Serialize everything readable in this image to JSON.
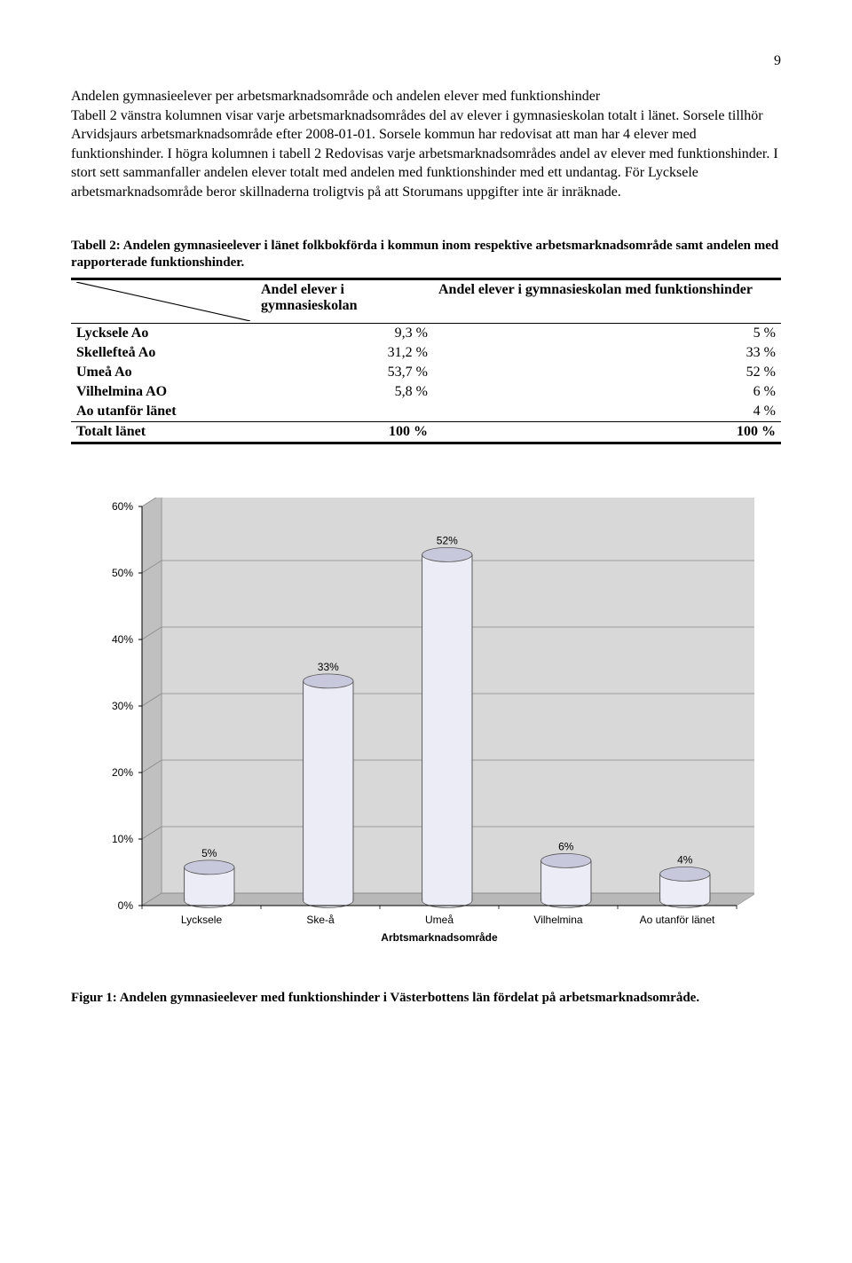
{
  "page_number": "9",
  "body_text": "Andelen gymnasieelever per arbetsmarknadsområde och andelen elever med funktionshinder\nTabell 2 vänstra kolumnen visar varje arbetsmarknadsområdes del av elever i gymnasieskolan totalt i länet. Sorsele tillhör Arvidsjaurs arbetsmarknadsområde efter 2008-01-01. Sorsele kommun har redovisat att man har 4 elever med funktionshinder. I högra kolumnen i tabell 2 Redovisas varje arbetsmarknadsområdes andel av elever med funktionshinder. I stort sett sammanfaller andelen elever totalt med andelen med funktionshinder med ett undantag. För Lycksele arbetsmarknadsområde beror skillnaderna troligtvis på att Storumans uppgifter inte är inräknade.",
  "table": {
    "caption": "Tabell 2: Andelen gymnasieelever i länet folkbokförda i kommun inom respektive arbetsmarknadsområde samt andelen med rapporterade funktionshinder.",
    "columns": [
      "",
      "Andel elever i gymnasieskolan",
      "Andel elever i gymnasieskolan med funktionshinder"
    ],
    "rows": [
      [
        "Lycksele Ao",
        "9,3 %",
        "5 %"
      ],
      [
        "Skellefteå Ao",
        "31,2 %",
        "33 %"
      ],
      [
        "Umeå Ao",
        "53,7 %",
        "52 %"
      ],
      [
        "Vilhelmina AO",
        "5,8 %",
        "6 %"
      ],
      [
        "Ao utanför länet",
        "",
        "4 %"
      ]
    ],
    "total_row": [
      "Totalt länet",
      "100 %",
      "100 %"
    ],
    "col_widths": [
      "26%",
      "25%",
      "49%"
    ]
  },
  "chart": {
    "type": "bar3d",
    "categories": [
      "Lycksele",
      "Ske-å",
      "Umeå",
      "Vilhelmina",
      "Ao utanför länet"
    ],
    "values": [
      5,
      33,
      52,
      6,
      4
    ],
    "bar_labels": [
      "5%",
      "33%",
      "52%",
      "6%",
      "4%"
    ],
    "x_title": "Arbtsmarknadsområde",
    "y_ticks": [
      0,
      10,
      20,
      30,
      40,
      50,
      60
    ],
    "y_tick_labels": [
      "0%",
      "10%",
      "20%",
      "30%",
      "40%",
      "50%",
      "60%"
    ],
    "ymax": 60,
    "bar_fill": "#ececf6",
    "bar_top": "#c8c8dc",
    "bar_side": "#b8b8cc",
    "bar_stroke": "#555",
    "back_wall": "#d8d8d8",
    "side_wall": "#c0c0c0",
    "floor": "#b8b8b8",
    "grid_color": "#8a8a8a",
    "label_font": "Arial, sans-serif",
    "label_fontsize": 12,
    "axis_fontsize": 12
  },
  "figure_caption": "Figur 1: Andelen gymnasieelever med funktionshinder i Västerbottens län fördelat på arbetsmarknadsområde."
}
